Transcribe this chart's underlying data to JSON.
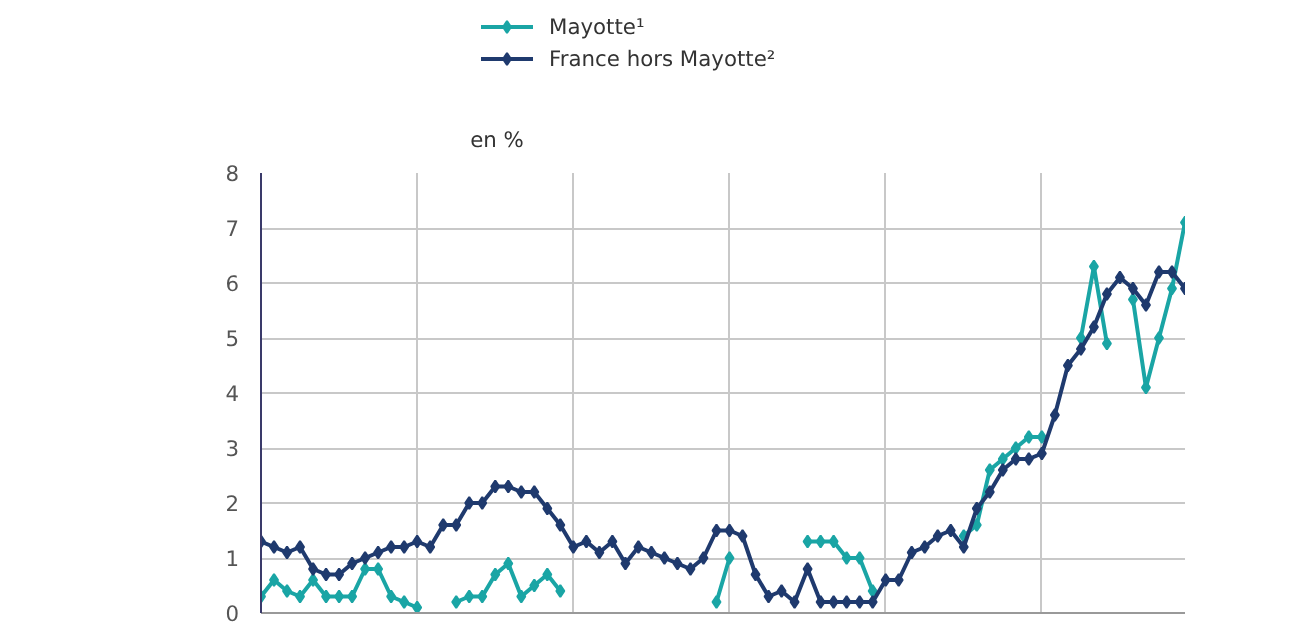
{
  "chart_data": {
    "type": "line",
    "ylabel": "en %",
    "categories": [
      null,
      null,
      null,
      null,
      null,
      null,
      null,
      null,
      null,
      null,
      null,
      null,
      null,
      null,
      null,
      null,
      null,
      null,
      null,
      null,
      null,
      null,
      null,
      null,
      null,
      null,
      null,
      null,
      null,
      null,
      null,
      null,
      null,
      null,
      null,
      null,
      null,
      null,
      null,
      null,
      null,
      null,
      null,
      null,
      null,
      null,
      null,
      null,
      null,
      null,
      null,
      null,
      null,
      null,
      null,
      null,
      null,
      null,
      null,
      null,
      null,
      null,
      null,
      null,
      null,
      null,
      null,
      null,
      null,
      null,
      null,
      null
    ],
    "series": [
      {
        "name": "Mayotte¹",
        "color": "#1aa5a5",
        "values": [
          0.3,
          0.6,
          0.4,
          0.3,
          0.6,
          0.3,
          0.3,
          0.3,
          0.8,
          0.8,
          0.3,
          0.2,
          0.1,
          null,
          null,
          0.2,
          0.3,
          0.3,
          0.7,
          0.9,
          0.3,
          0.5,
          0.7,
          0.4,
          null,
          null,
          null,
          null,
          null,
          null,
          null,
          null,
          null,
          null,
          null,
          0.2,
          1.0,
          null,
          null,
          null,
          null,
          null,
          1.3,
          1.3,
          1.3,
          1.0,
          1.0,
          0.4,
          null,
          null,
          null,
          null,
          null,
          null,
          1.4,
          1.6,
          2.6,
          2.8,
          3.0,
          3.2,
          3.2,
          null,
          null,
          5.0,
          6.3,
          4.9,
          null,
          5.7,
          4.1,
          5.0,
          5.9,
          7.1
        ]
      },
      {
        "name": "France hors Mayotte²",
        "color": "#1f3a6e",
        "values": [
          1.3,
          1.2,
          1.1,
          1.2,
          0.8,
          0.7,
          0.7,
          0.9,
          1.0,
          1.1,
          1.2,
          1.2,
          1.3,
          1.2,
          1.6,
          1.6,
          2.0,
          2.0,
          2.3,
          2.3,
          2.2,
          2.2,
          1.9,
          1.6,
          1.2,
          1.3,
          1.1,
          1.3,
          0.9,
          1.2,
          1.1,
          1.0,
          0.9,
          0.8,
          1.0,
          1.5,
          1.5,
          1.4,
          0.7,
          0.3,
          0.4,
          0.2,
          0.8,
          0.2,
          0.2,
          0.2,
          0.2,
          0.2,
          0.6,
          0.6,
          1.1,
          1.2,
          1.4,
          1.5,
          1.2,
          1.9,
          2.2,
          2.6,
          2.8,
          2.8,
          2.9,
          3.6,
          4.5,
          4.8,
          5.2,
          5.8,
          6.1,
          5.9,
          5.6,
          6.2,
          6.2,
          5.9
        ]
      }
    ],
    "ylim": [
      0,
      8
    ],
    "yticks": [
      0,
      1,
      2,
      3,
      4,
      5,
      6,
      7,
      8
    ],
    "grid": true,
    "legend": "top left",
    "marker": "diamond",
    "line_style": "solid"
  }
}
